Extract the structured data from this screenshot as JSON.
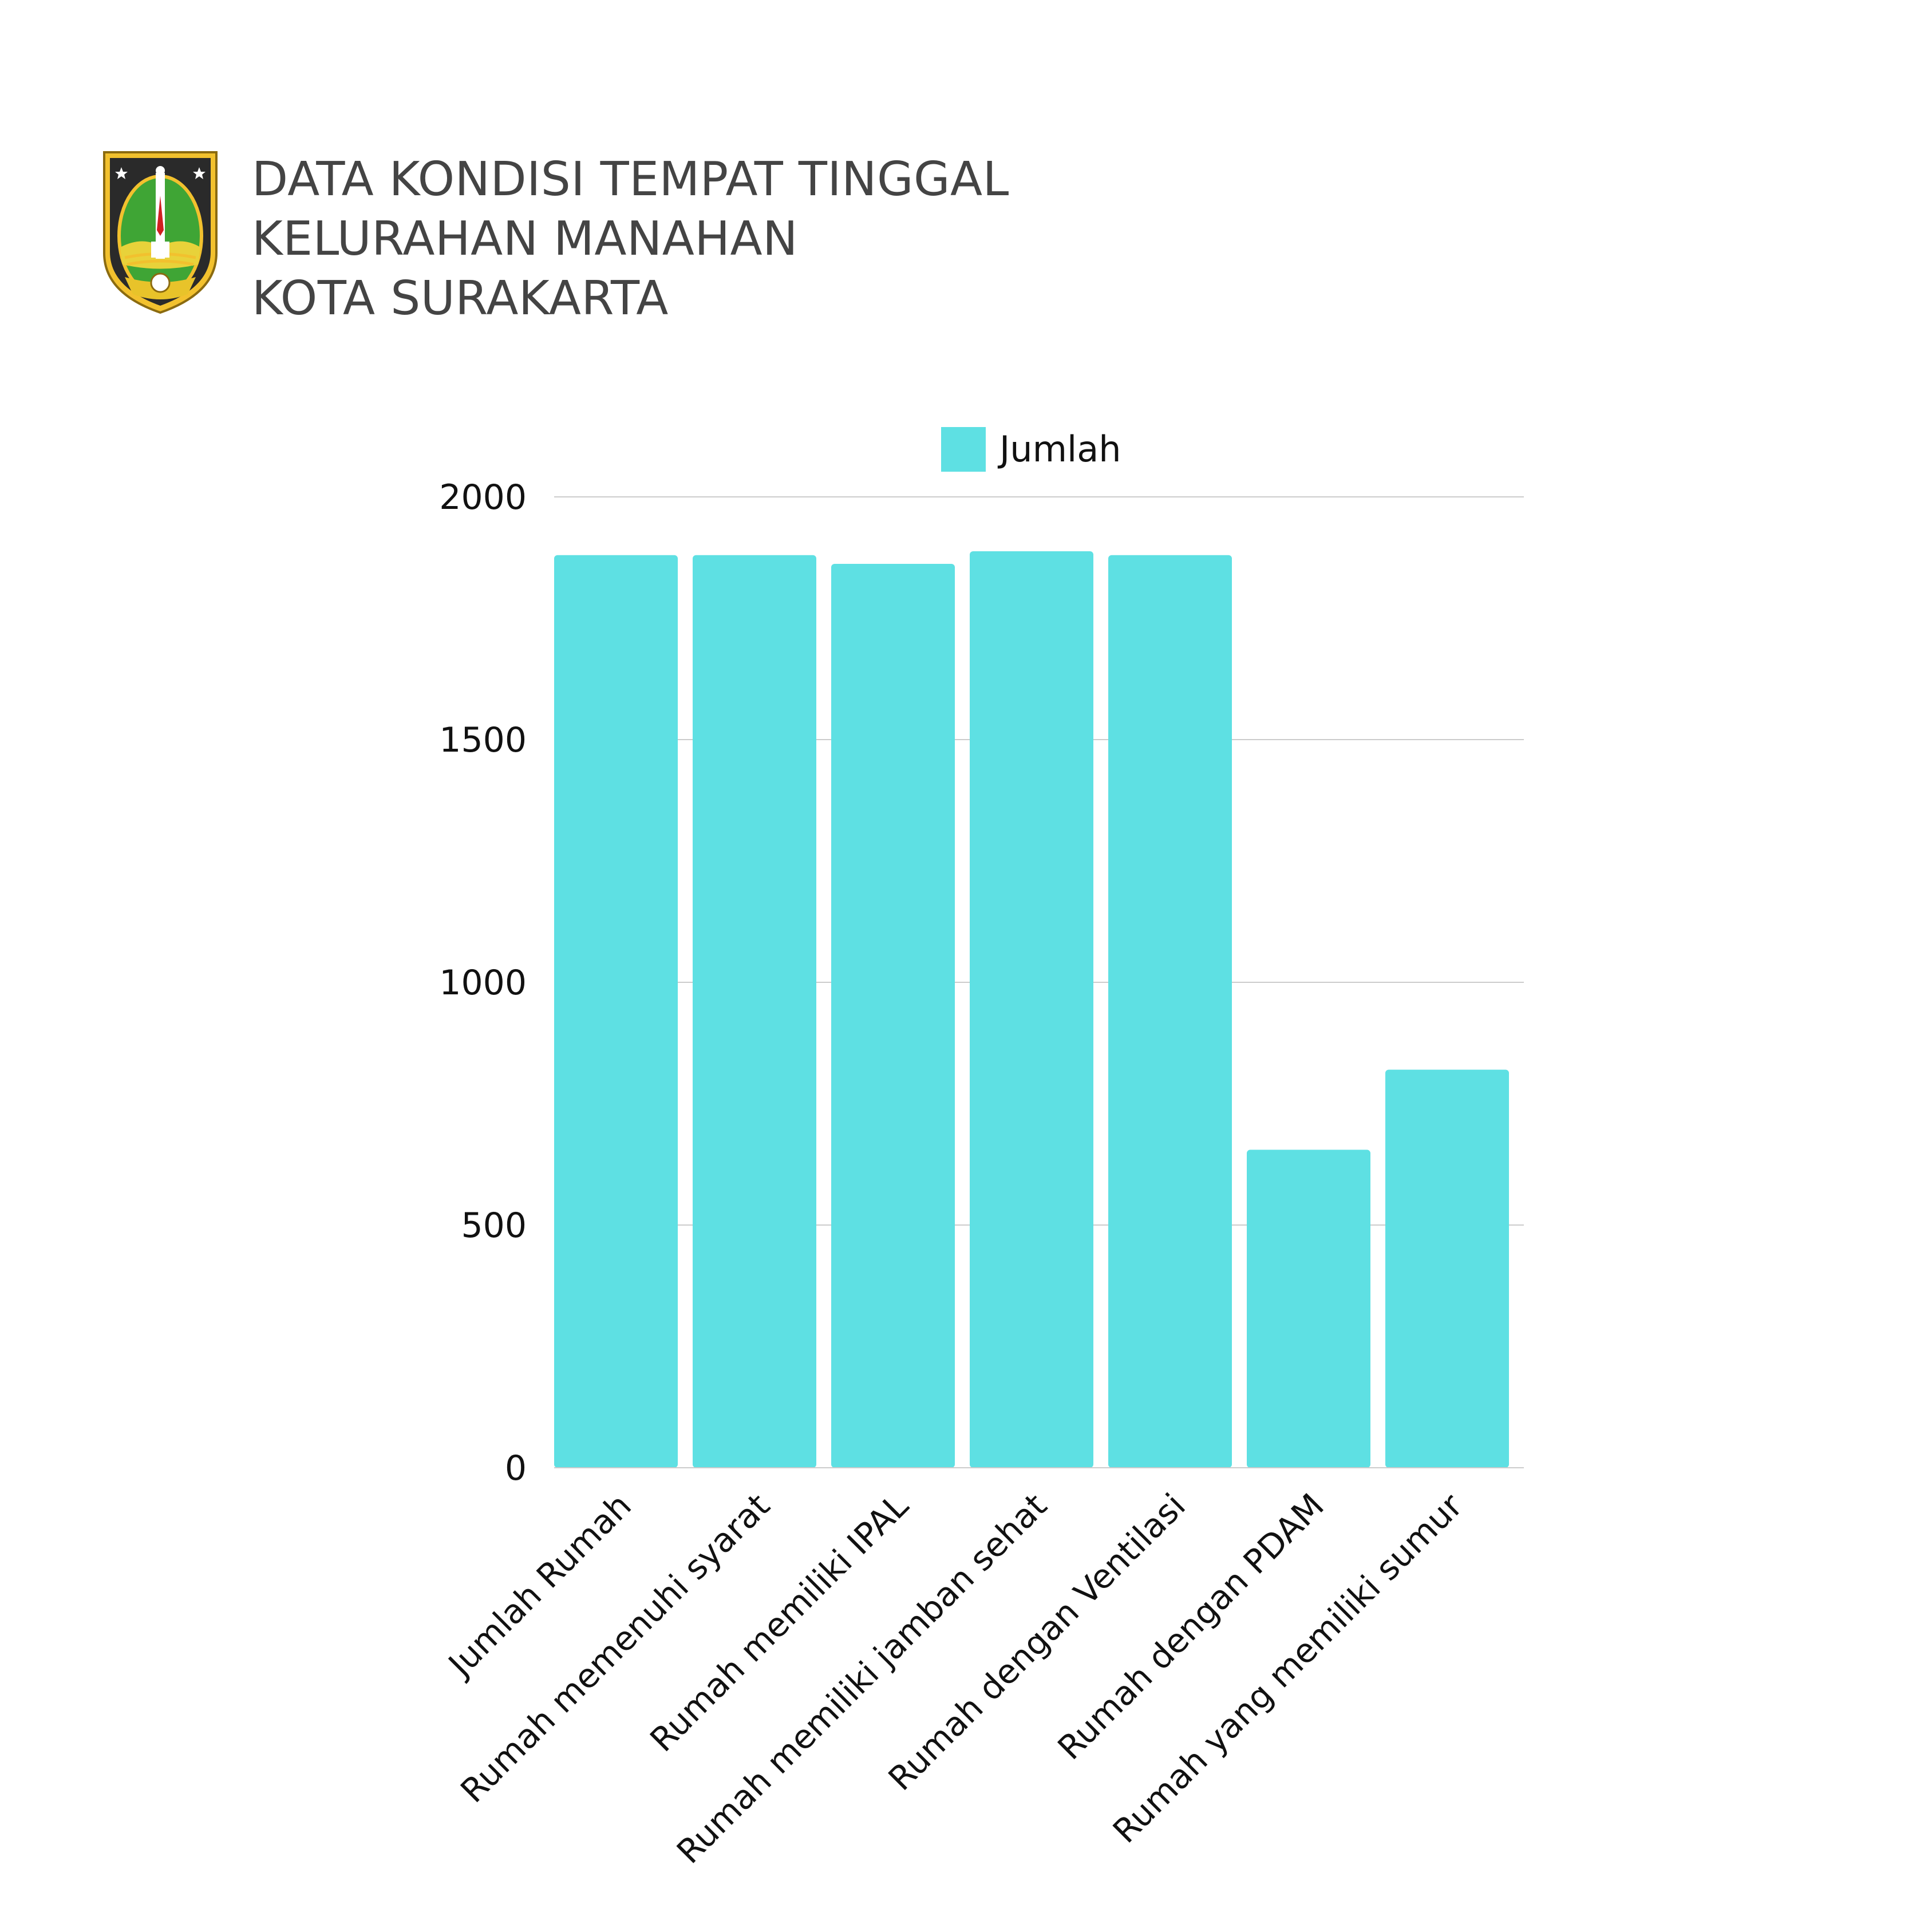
{
  "header": {
    "title_lines": [
      "DATA KONDISI TEMPAT TINGGAL",
      "KELURAHAN MANAHAN",
      "KOTA SURAKARTA"
    ],
    "emblem": "kota-surakarta-coat-of-arms"
  },
  "chart_data": {
    "type": "bar",
    "categories": [
      "Jumlah Rumah",
      "Rumah memenuhi syarat",
      "Rumah memiliki IPAL",
      "Rumah memiliki jamban sehat",
      "Rumah dengan Ventilasi",
      "Rumah dengan PDAM",
      "Rumah yang memiliki sumur"
    ],
    "series": [
      {
        "name": "Jumlah",
        "values": [
          1880,
          1880,
          1862,
          1888,
          1880,
          655,
          820
        ]
      }
    ],
    "ylim": [
      0,
      2000
    ],
    "yticks": [
      0,
      500,
      1000,
      1500,
      2000
    ],
    "grid": true,
    "legend": "top-center",
    "colors": {
      "bar": "#5EE0E3",
      "grid": "#CCCCCC",
      "text": "#111111",
      "title": "#444444"
    }
  }
}
